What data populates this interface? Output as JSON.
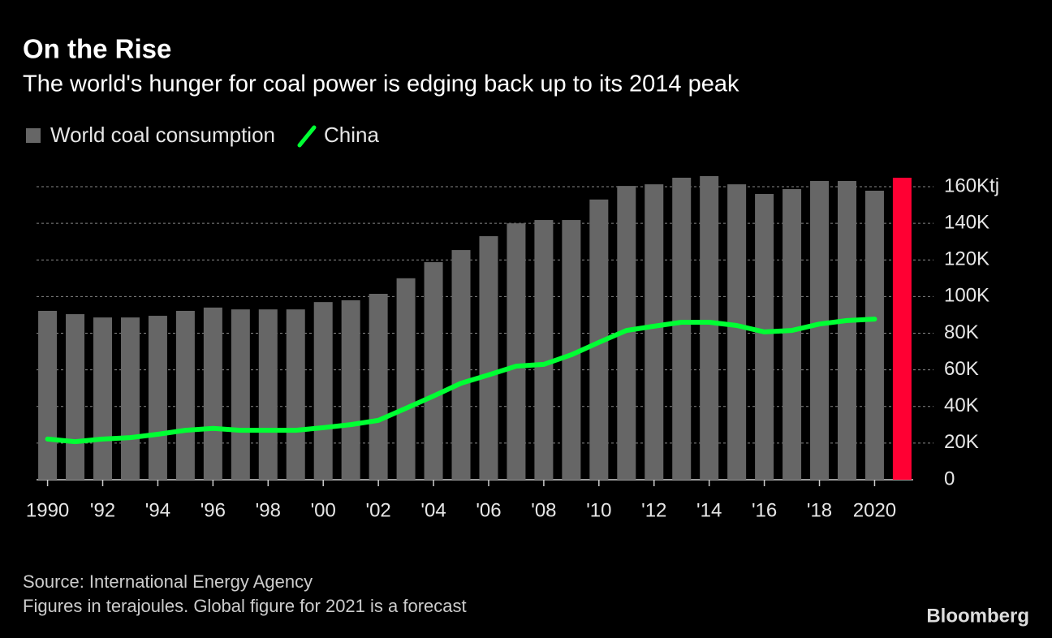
{
  "chart_data": {
    "type": "bar",
    "title": "On the Rise",
    "subtitle": "The world's hunger for coal power is edging back up to its 2014 peak",
    "source": "Source: International Energy Agency",
    "note": "Figures in terajoules. Global figure for 2021 is a forecast",
    "brand": "Bloomberg",
    "x": [
      1990,
      1991,
      1992,
      1993,
      1994,
      1995,
      1996,
      1997,
      1998,
      1999,
      2000,
      2001,
      2002,
      2003,
      2004,
      2005,
      2006,
      2007,
      2008,
      2009,
      2010,
      2011,
      2012,
      2013,
      2014,
      2015,
      2016,
      2017,
      2018,
      2019,
      2020,
      2021
    ],
    "series": [
      {
        "name": "World coal consumption",
        "type": "bar",
        "color": "#666666",
        "colors": [
          "#666666",
          "#666666",
          "#666666",
          "#666666",
          "#666666",
          "#666666",
          "#666666",
          "#666666",
          "#666666",
          "#666666",
          "#666666",
          "#666666",
          "#666666",
          "#666666",
          "#666666",
          "#666666",
          "#666666",
          "#666666",
          "#666666",
          "#666666",
          "#666666",
          "#666666",
          "#666666",
          "#666666",
          "#666666",
          "#666666",
          "#666666",
          "#666666",
          "#666666",
          "#666666",
          "#666666",
          "#ff0033"
        ],
        "values": [
          92200,
          90400,
          88600,
          88600,
          89500,
          92200,
          94000,
          93000,
          93000,
          93000,
          97000,
          98000,
          101500,
          110000,
          118800,
          125400,
          133000,
          140000,
          141800,
          141800,
          153000,
          160400,
          161300,
          164900,
          165800,
          161300,
          156000,
          158700,
          163100,
          163100,
          157800,
          164900
        ]
      },
      {
        "name": "China",
        "type": "line",
        "color": "#00ff33",
        "values": [
          22200,
          20800,
          22200,
          23000,
          24800,
          27000,
          28000,
          27000,
          27000,
          27000,
          28400,
          30100,
          32400,
          39000,
          45700,
          52700,
          57200,
          62000,
          63000,
          68200,
          75000,
          81500,
          83800,
          86000,
          86000,
          84200,
          80700,
          81500,
          85000,
          86900,
          87700,
          null
        ]
      }
    ],
    "xlim": [
      1989.6,
      2021.4
    ],
    "xticks": [
      {
        "value": 1990,
        "label": "1990"
      },
      {
        "value": 1992,
        "label": "'92"
      },
      {
        "value": 1994,
        "label": "'94"
      },
      {
        "value": 1996,
        "label": "'96"
      },
      {
        "value": 1998,
        "label": "'98"
      },
      {
        "value": 2000,
        "label": "'00"
      },
      {
        "value": 2002,
        "label": "'02"
      },
      {
        "value": 2004,
        "label": "'04"
      },
      {
        "value": 2006,
        "label": "'06"
      },
      {
        "value": 2008,
        "label": "'08"
      },
      {
        "value": 2010,
        "label": "'10"
      },
      {
        "value": 2012,
        "label": "'12"
      },
      {
        "value": 2014,
        "label": "'14"
      },
      {
        "value": 2016,
        "label": "'16"
      },
      {
        "value": 2018,
        "label": "'18"
      },
      {
        "value": 2020,
        "label": "2020"
      }
    ],
    "ylim": [
      0,
      160000
    ],
    "yticks": [
      0,
      {
        "value": 20000,
        "label": "20K"
      },
      {
        "value": 40000,
        "label": "40K"
      },
      {
        "value": 60000,
        "label": "60K"
      },
      {
        "value": 80000,
        "label": "80K"
      },
      {
        "value": 100000,
        "label": "100K"
      },
      {
        "value": 120000,
        "label": "120K"
      },
      {
        "value": 140000,
        "label": "140K"
      },
      {
        "value": 160000,
        "label": "160Ktj"
      }
    ],
    "grid": true
  }
}
